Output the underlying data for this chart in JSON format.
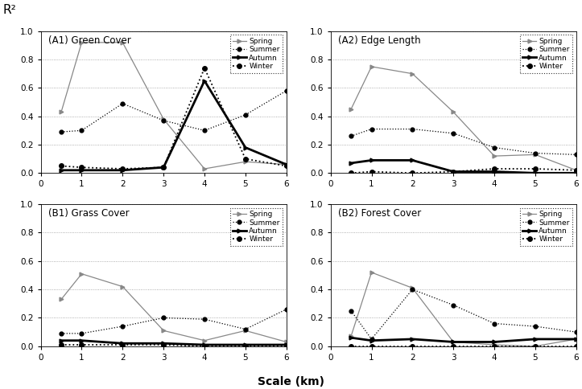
{
  "x": [
    0.5,
    1,
    2,
    3,
    4,
    5,
    6
  ],
  "A1_spring": [
    0.43,
    0.92,
    0.92,
    0.38,
    0.03,
    0.08,
    0.06
  ],
  "A1_summer": [
    0.29,
    0.3,
    0.49,
    0.37,
    0.3,
    0.41,
    0.58
  ],
  "A1_autumn": [
    0.02,
    0.02,
    0.02,
    0.04,
    0.65,
    0.18,
    0.06
  ],
  "A1_winter": [
    0.05,
    0.04,
    0.03,
    0.04,
    0.74,
    0.1,
    0.05
  ],
  "A2_spring": [
    0.45,
    0.75,
    0.7,
    0.43,
    0.12,
    0.13,
    0.02
  ],
  "A2_summer": [
    0.26,
    0.31,
    0.31,
    0.28,
    0.18,
    0.14,
    0.13
  ],
  "A2_autumn": [
    0.07,
    0.09,
    0.09,
    0.01,
    0.01,
    0.0,
    0.0
  ],
  "A2_winter": [
    0.0,
    0.01,
    0.0,
    0.01,
    0.03,
    0.03,
    0.02
  ],
  "B1_spring": [
    0.33,
    0.51,
    0.42,
    0.11,
    0.04,
    0.11,
    0.03
  ],
  "B1_summer": [
    0.09,
    0.09,
    0.14,
    0.2,
    0.19,
    0.12,
    0.26
  ],
  "B1_autumn": [
    0.04,
    0.04,
    0.02,
    0.02,
    0.01,
    0.01,
    0.01
  ],
  "B1_winter": [
    0.01,
    0.01,
    0.01,
    0.01,
    0.0,
    0.0,
    0.0
  ],
  "B2_spring": [
    0.07,
    0.52,
    0.41,
    0.03,
    0.01,
    0.0,
    0.05
  ],
  "B2_summer": [
    0.25,
    0.05,
    0.4,
    0.29,
    0.16,
    0.14,
    0.1
  ],
  "B2_autumn": [
    0.06,
    0.04,
    0.05,
    0.03,
    0.03,
    0.05,
    0.05
  ],
  "B2_winter": [
    0.0,
    0.0,
    0.0,
    0.0,
    0.0,
    0.0,
    0.0
  ],
  "title_A1": "(A1) Green Cover",
  "title_A2": "(A2) Edge Length",
  "title_B1": "(B1) Grass Cover",
  "title_B2": "(B2) Forest Cover",
  "xlabel": "Scale (km)",
  "ylabel": "R²",
  "seasons": [
    "Spring",
    "Summer",
    "Autumn",
    "Winter"
  ],
  "ylim": [
    0,
    1
  ],
  "yticks": [
    0,
    0.2,
    0.4,
    0.6,
    0.8,
    1.0
  ],
  "xticks": [
    0,
    1,
    2,
    3,
    4,
    5,
    6
  ]
}
